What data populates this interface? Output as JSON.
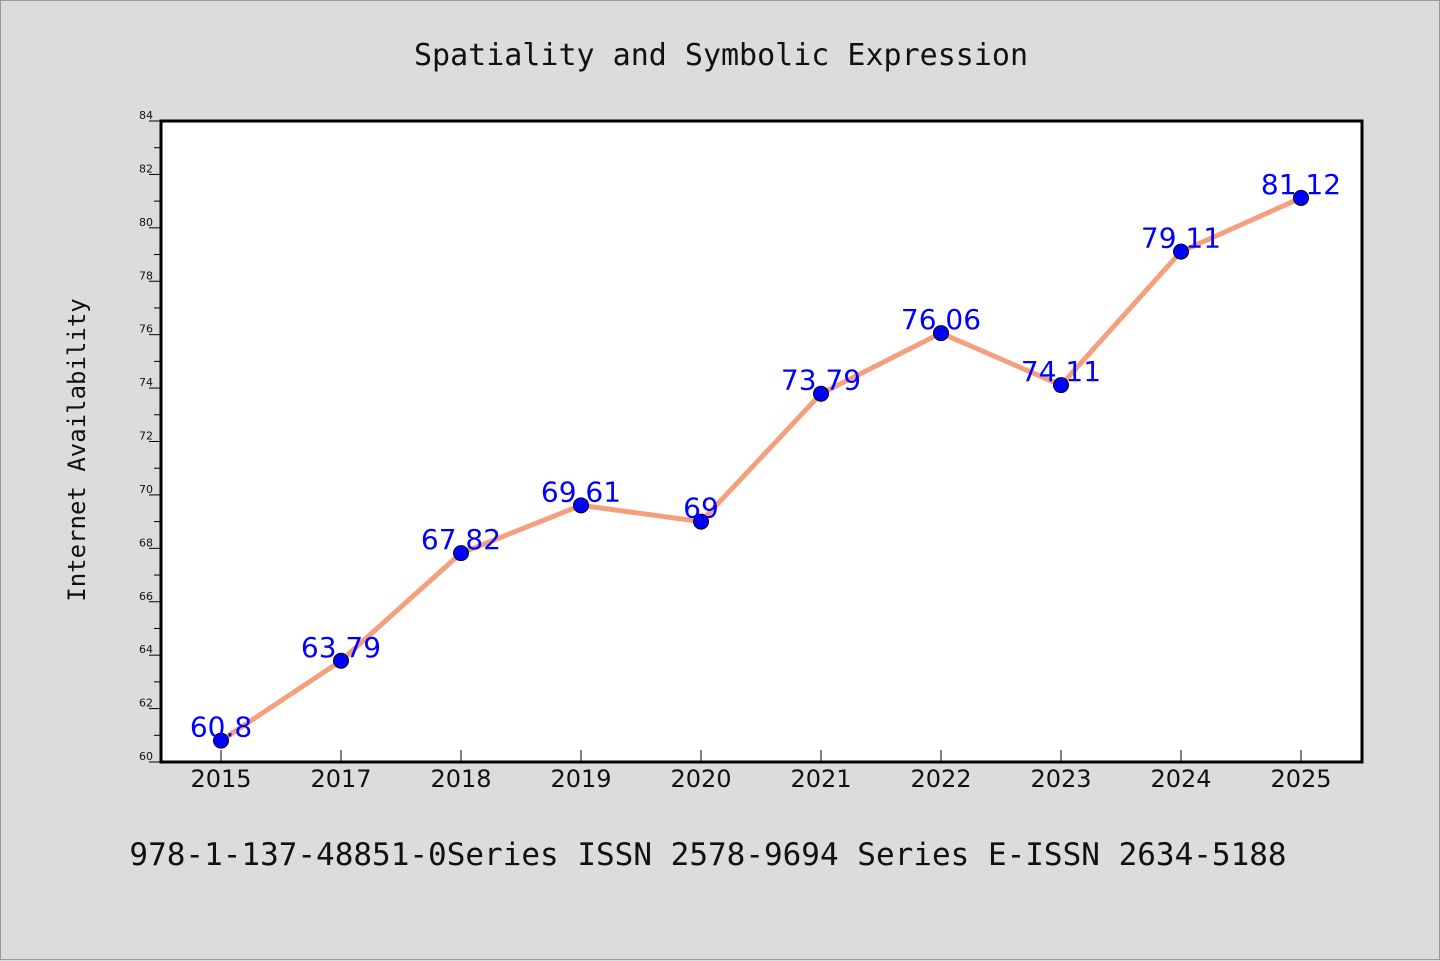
{
  "chart_data": {
    "type": "line",
    "title": "Spatiality and Symbolic Expression",
    "xlabel": "",
    "ylabel": "Internet Availability",
    "categories": [
      "2015",
      "2017",
      "2018",
      "2019",
      "2020",
      "2021",
      "2022",
      "2023",
      "2024",
      "2025"
    ],
    "series": [
      {
        "values": [
          60.8,
          63.79,
          67.82,
          69.61,
          69,
          73.79,
          76.06,
          74.11,
          79.11,
          81.12
        ],
        "labels": [
          "60.8",
          "63.79",
          "67.82",
          "69.61",
          "69",
          "73.79",
          "76.06",
          "74.11",
          "79.11",
          "81.12"
        ],
        "line_color": "#f4a07f",
        "marker_color": "#0000ff",
        "label_color": "#0000ff"
      }
    ],
    "ylim": [
      60,
      84
    ],
    "yticks": [
      "60",
      "62",
      "64",
      "66",
      "68",
      "70",
      "72",
      "74",
      "76",
      "78",
      "80",
      "82",
      "84"
    ],
    "grid": false,
    "legend": "none",
    "footer": "978-1-137-48851-0Series ISSN 2578-9694 Series E-ISSN 2634-5188"
  },
  "colors": {
    "background": "#dcdcdc",
    "plot_area": "#ffffff",
    "axis": "#000000"
  }
}
